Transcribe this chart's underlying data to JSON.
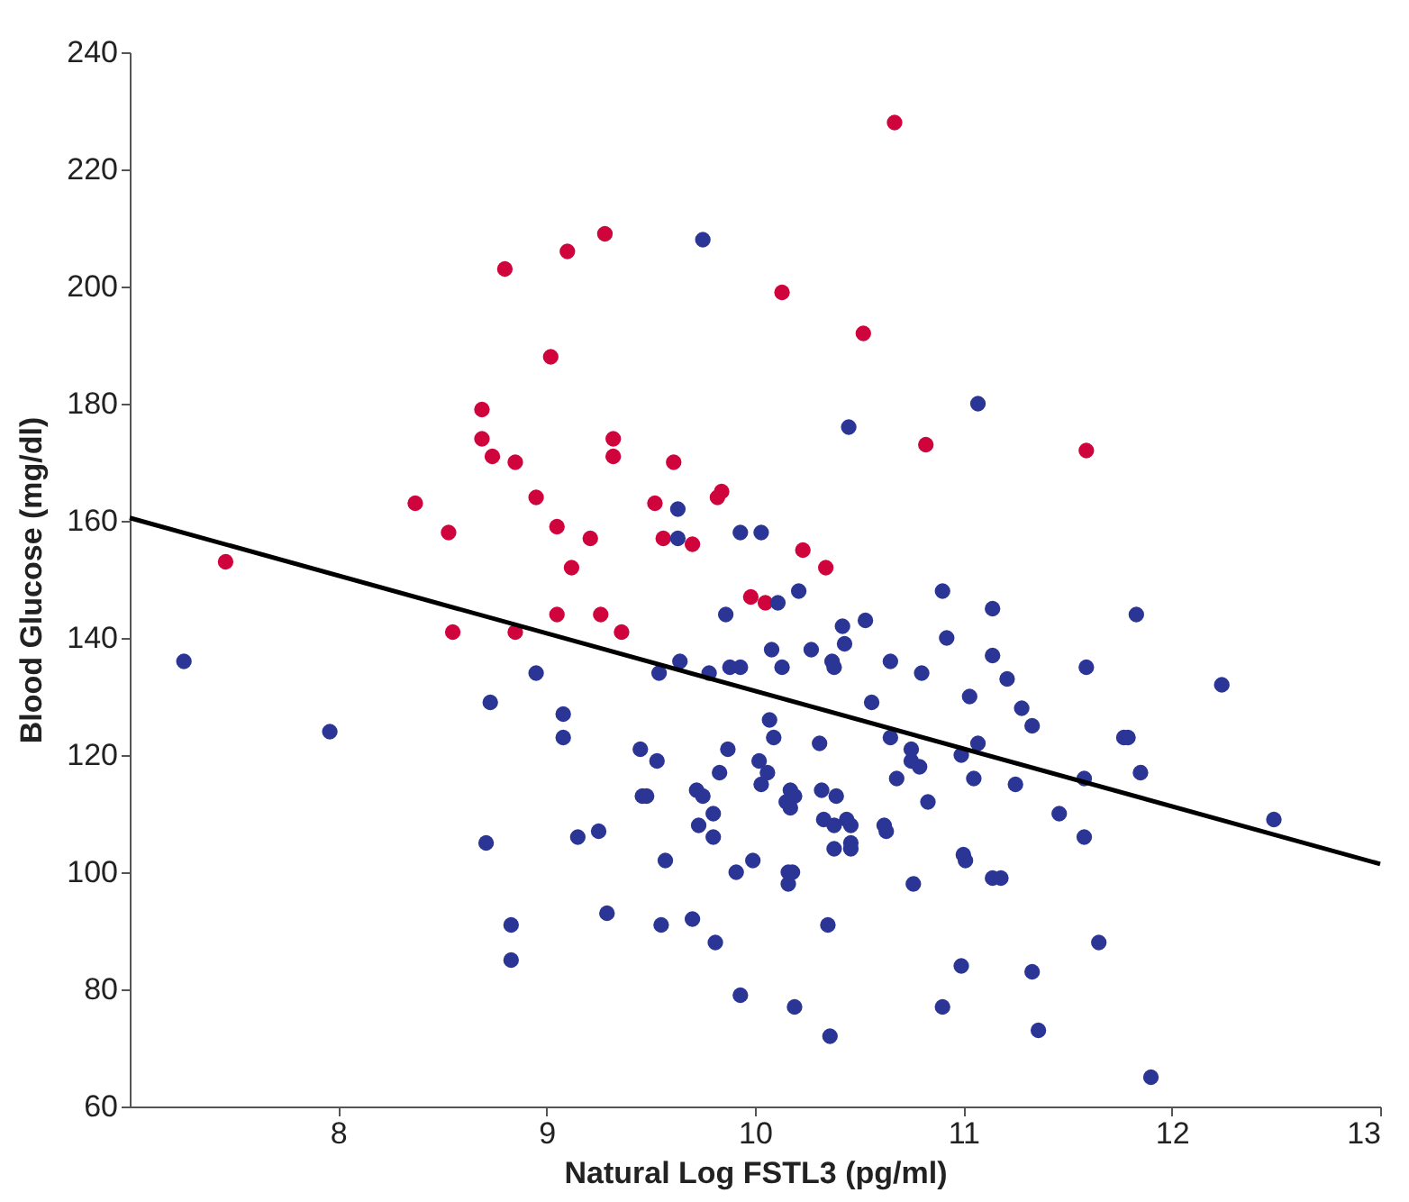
{
  "chart_data": {
    "type": "scatter",
    "xlabel": "Natural Log FSTL3 (pg/ml)",
    "ylabel": "Blood Glucose (mg/dl)",
    "xlim": [
      7,
      13
    ],
    "xticks": [
      8,
      9,
      10,
      11,
      12,
      13
    ],
    "ylim": [
      60,
      240
    ],
    "yticks": [
      60,
      80,
      100,
      120,
      140,
      160,
      180,
      200,
      220,
      240
    ],
    "grid": false,
    "series": [
      {
        "marker": "circle",
        "color": "#d0043c",
        "x": [
          9.28,
          9.1,
          8.8,
          9.02,
          8.69,
          8.69,
          8.74,
          8.85,
          9.32,
          9.32,
          9.61,
          8.37,
          8.95,
          9.52,
          9.84,
          9.82,
          8.53,
          9.05,
          9.21,
          9.56,
          9.7,
          7.46,
          9.12,
          9.05,
          9.26,
          9.36,
          8.55,
          8.85,
          10.67,
          10.13,
          10.52,
          10.82,
          11.59,
          10.23,
          10.34,
          9.98,
          10.05
        ],
        "values": [
          209,
          206,
          203,
          188,
          179,
          174,
          171,
          170,
          174,
          171,
          170,
          163,
          164,
          163,
          165,
          164,
          158,
          159,
          157,
          157,
          156,
          153,
          152,
          144,
          144,
          141,
          141,
          141,
          228,
          199,
          192,
          173,
          172,
          155,
          152,
          147,
          146
        ]
      },
      {
        "marker": "circle",
        "color": "#2b3596",
        "x": [
          9.75,
          9.63,
          9.63,
          9.93,
          10.03,
          10.45,
          11.07,
          9.86,
          10.21,
          10.9,
          10.11,
          11.14,
          11.83,
          10.42,
          10.53,
          10.43,
          10.92,
          10.08,
          10.27,
          11.14,
          9.78,
          9.88,
          9.93,
          10.13,
          10.37,
          10.38,
          10.65,
          10.8,
          11.59,
          11.21,
          12.24,
          10.56,
          11.03,
          11.28,
          11.33,
          10.07,
          10.09,
          10.31,
          10.65,
          11.07,
          10.75,
          10.75,
          10.79,
          10.99,
          11.77,
          11.79,
          11.85,
          11.58,
          11.05,
          11.25,
          10.68,
          10.02,
          10.06,
          10.03,
          10.17,
          10.19,
          10.15,
          10.17,
          10.32,
          10.39,
          10.33,
          10.44,
          10.46,
          10.38,
          10.62,
          10.63,
          10.83,
          11.46,
          12.49,
          11.58,
          10.38,
          10.46,
          10.46,
          11.0,
          11.01,
          9.99,
          9.91,
          10.16,
          10.18,
          10.16,
          10.76,
          11.14,
          11.18,
          10.35,
          11.65,
          10.99,
          11.33,
          9.93,
          10.19,
          10.9,
          10.36,
          11.36,
          11.9,
          7.26,
          7.96,
          8.73,
          8.95,
          9.54,
          9.64,
          9.08,
          9.08,
          8.71,
          8.83,
          8.83,
          9.15,
          9.25,
          9.29,
          9.45,
          9.53,
          9.46,
          9.48,
          9.57,
          9.55,
          9.7,
          9.81,
          9.72,
          9.75,
          9.83,
          9.87,
          9.8,
          9.73,
          9.8
        ],
        "values": [
          208,
          162,
          157,
          158,
          158,
          176,
          180,
          144,
          148,
          148,
          146,
          145,
          144,
          142,
          143,
          139,
          140,
          138,
          138,
          137,
          134,
          135,
          135,
          135,
          136,
          135,
          136,
          134,
          135,
          133,
          132,
          129,
          130,
          128,
          125,
          126,
          123,
          122,
          123,
          122,
          121,
          119,
          118,
          120,
          123,
          123,
          117,
          116,
          116,
          115,
          116,
          119,
          117,
          115,
          114,
          113,
          112,
          111,
          114,
          113,
          109,
          109,
          108,
          108,
          108,
          107,
          112,
          110,
          109,
          106,
          104,
          105,
          104,
          103,
          102,
          102,
          100,
          100,
          100,
          98,
          98,
          99,
          99,
          91,
          88,
          84,
          83,
          79,
          77,
          77,
          72,
          73,
          65,
          136,
          124,
          129,
          134,
          134,
          136,
          127,
          123,
          105,
          91,
          85,
          106,
          107,
          93,
          121,
          119,
          113,
          113,
          102,
          91,
          92,
          88,
          114,
          113,
          117,
          121,
          110,
          108,
          106
        ]
      },
      {
        "type": "line",
        "line_style": "solid",
        "marker": "none",
        "color": "#000000",
        "x": [
          7,
          13
        ],
        "values": [
          160.5,
          101.4
        ]
      }
    ]
  }
}
